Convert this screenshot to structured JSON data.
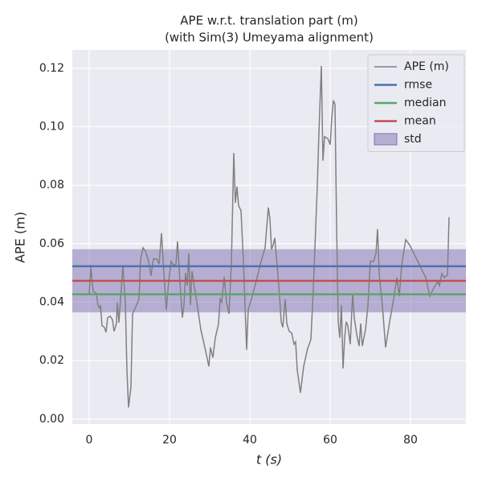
{
  "chart_data": {
    "type": "line",
    "title": [
      "APE w.r.t. translation part (m)",
      "(with Sim(3) Umeyama alignment)"
    ],
    "xlabel": "t (s)",
    "ylabel": "APE (m)",
    "xlim": [
      -4.2,
      93.8
    ],
    "ylim": [
      -0.0017,
      0.1263
    ],
    "xticks": [
      0,
      20,
      40,
      60,
      80
    ],
    "yticks": [
      {
        "value": 0.0,
        "label": "0.00"
      },
      {
        "value": 0.02,
        "label": "0.02"
      },
      {
        "value": 0.04,
        "label": "0.04"
      },
      {
        "value": 0.06,
        "label": "0.06"
      },
      {
        "value": 0.08,
        "label": "0.08"
      },
      {
        "value": 0.1,
        "label": "0.10"
      },
      {
        "value": 0.12,
        "label": "0.12"
      }
    ],
    "grid": true,
    "legend": "upper right",
    "series": [
      {
        "name": "APE (m)",
        "color": "#808080",
        "x": [
          0,
          0.4,
          1,
          1.8,
          2.2,
          2.6,
          2.8,
          3.2,
          3.8,
          4.2,
          4.6,
          5.2,
          5.8,
          6.2,
          6.8,
          7,
          7.4,
          7.8,
          8.4,
          9,
          9.4,
          9.8,
          10.4,
          10.8,
          11.8,
          12.4,
          12.8,
          13.4,
          14,
          14.8,
          15.4,
          16,
          16.8,
          17.4,
          18,
          18.6,
          19.2,
          19.8,
          20.4,
          21,
          21.6,
          22,
          22.6,
          23.2,
          23.6,
          24,
          24.4,
          24.8,
          25.2,
          25.6,
          26,
          26.8,
          27.8,
          28.8,
          29.8,
          30.2,
          30.8,
          31.4,
          32.2,
          32.6,
          33,
          33.6,
          34.2,
          34.8,
          35.4,
          36,
          36.4,
          36.8,
          37.2,
          37.8,
          38.4,
          38.8,
          39.2,
          39.6,
          40.8,
          41.8,
          42.8,
          43.8,
          44.6,
          45,
          45.4,
          45.8,
          46.2,
          46.8,
          47.4,
          47.8,
          48.2,
          48.8,
          49.2,
          49.8,
          50.4,
          51,
          51.4,
          51.8,
          52.6,
          53.4,
          54.4,
          55.2,
          55.8,
          56.8,
          57.2,
          57.8,
          58.2,
          58.6,
          59.4,
          60,
          60.4,
          60.8,
          61.2,
          61.6,
          62,
          62.4,
          62.8,
          63.2,
          63.6,
          64,
          64.4,
          65,
          65.6,
          66,
          66.6,
          67.2,
          67.6,
          68,
          68.8,
          69.4,
          70,
          70.8,
          71.4,
          71.8,
          72.2,
          73,
          73.8,
          74.8,
          75.8,
          76.6,
          77.2,
          77.8,
          78.8,
          79.8,
          81.8,
          83.8,
          84.8,
          85.8,
          86.8,
          87.2,
          87.8,
          88.4,
          89.2,
          89.6
        ],
        "values": [
          0.043,
          0.052,
          0.0437,
          0.043,
          0.0388,
          0.038,
          0.039,
          0.032,
          0.0314,
          0.0297,
          0.0347,
          0.0352,
          0.034,
          0.03,
          0.0327,
          0.04,
          0.033,
          0.041,
          0.0526,
          0.04,
          0.0168,
          0.004,
          0.011,
          0.036,
          0.039,
          0.041,
          0.0545,
          0.0586,
          0.0575,
          0.054,
          0.049,
          0.0548,
          0.0548,
          0.053,
          0.0636,
          0.05,
          0.0374,
          0.047,
          0.054,
          0.0526,
          0.053,
          0.0608,
          0.047,
          0.0347,
          0.039,
          0.05,
          0.0457,
          0.0567,
          0.039,
          0.0506,
          0.047,
          0.04,
          0.0306,
          0.0245,
          0.018,
          0.0245,
          0.021,
          0.0278,
          0.0325,
          0.041,
          0.04,
          0.0487,
          0.04,
          0.036,
          0.053,
          0.091,
          0.074,
          0.0795,
          0.073,
          0.0713,
          0.054,
          0.0388,
          0.0237,
          0.0374,
          0.043,
          0.0484,
          0.054,
          0.0586,
          0.0724,
          0.0685,
          0.058,
          0.0595,
          0.062,
          0.0526,
          0.042,
          0.0333,
          0.0314,
          0.041,
          0.0327,
          0.03,
          0.0295,
          0.0256,
          0.0264,
          0.0168,
          0.009,
          0.018,
          0.0242,
          0.0272,
          0.0443,
          0.08,
          0.098,
          0.1208,
          0.0884,
          0.0966,
          0.096,
          0.0939,
          0.103,
          0.109,
          0.1076,
          0.0663,
          0.0333,
          0.0278,
          0.039,
          0.0173,
          0.0278,
          0.0333,
          0.032,
          0.0256,
          0.043,
          0.0347,
          0.029,
          0.025,
          0.0327,
          0.025,
          0.0306,
          0.0388,
          0.054,
          0.054,
          0.0567,
          0.065,
          0.0498,
          0.0388,
          0.0245,
          0.0333,
          0.041,
          0.0484,
          0.042,
          0.0526,
          0.0614,
          0.0595,
          0.054,
          0.0484,
          0.042,
          0.0449,
          0.047,
          0.0457,
          0.0498,
          0.0484,
          0.0493,
          0.0691
        ]
      }
    ],
    "lines": [
      {
        "name": "rmse",
        "color": "#4c72b0",
        "value": 0.0523
      },
      {
        "name": "median",
        "color": "#55a868",
        "value": 0.0427
      },
      {
        "name": "mean",
        "color": "#c44e52",
        "value": 0.0473
      }
    ],
    "band": {
      "name": "std",
      "color": "#8172b2",
      "std": 0.0108
    }
  }
}
